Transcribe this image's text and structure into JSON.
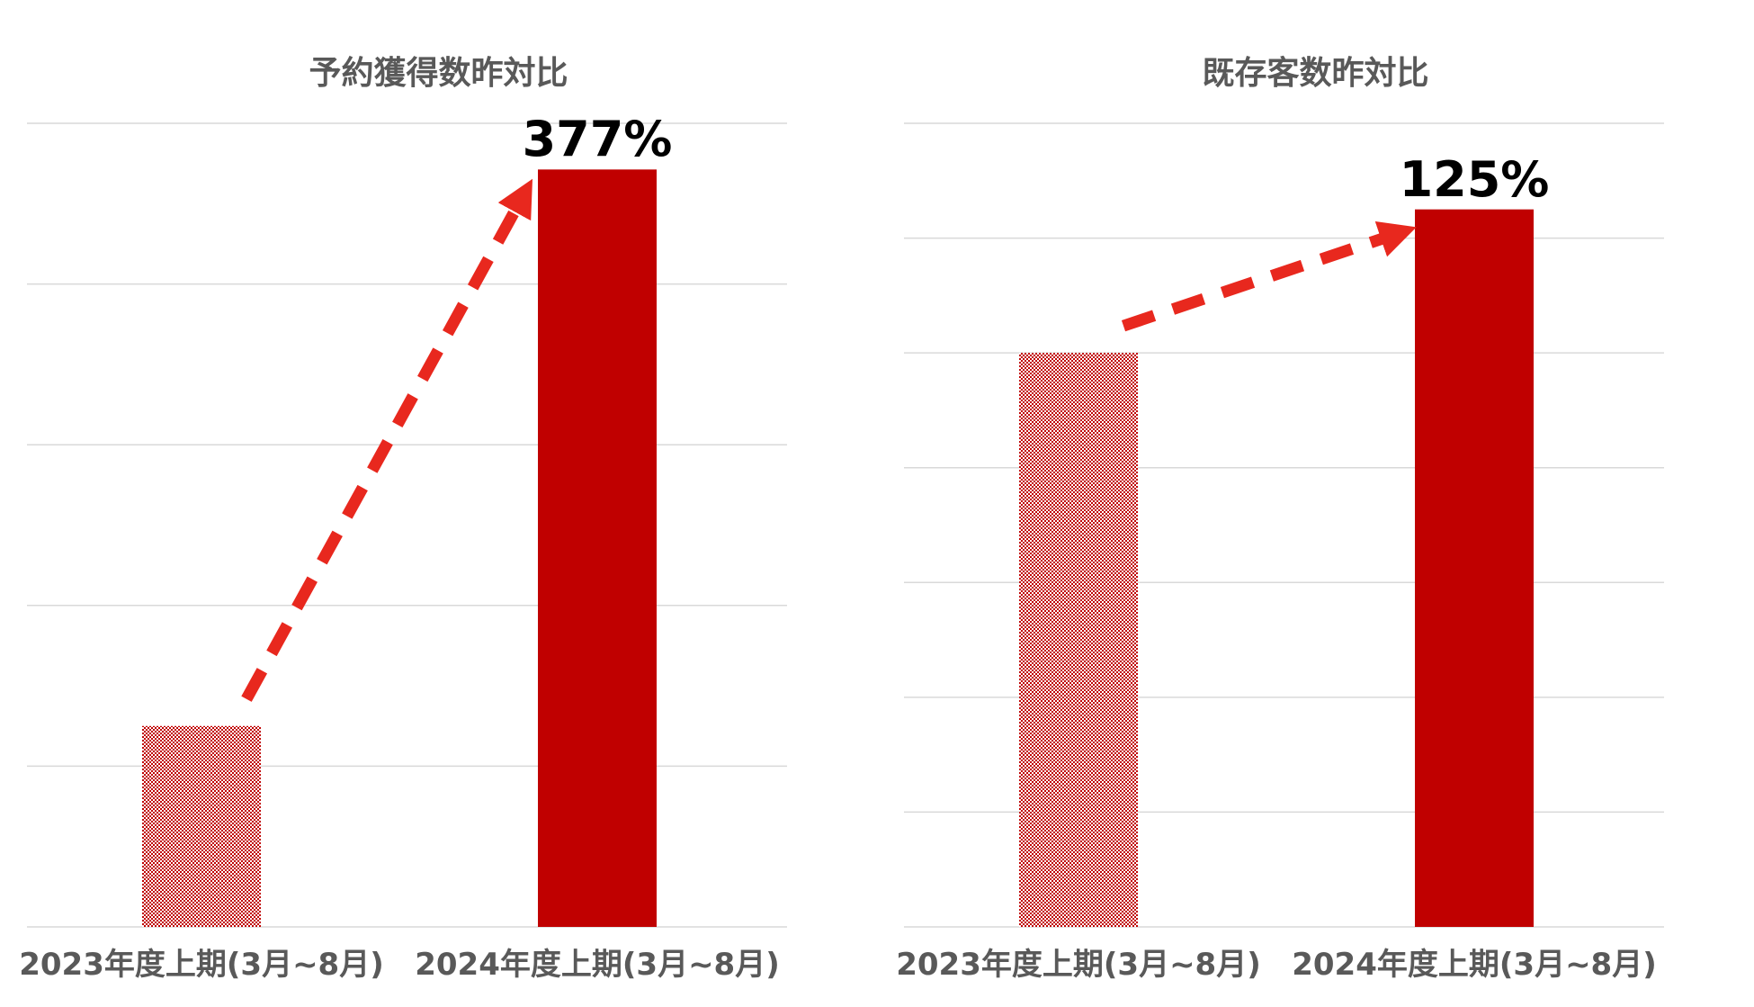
{
  "colors": {
    "bar_current": "#c00000",
    "bar_previous_pattern": "#c00000",
    "arrow": "#e8281e",
    "gridline": "#d9d9d9",
    "title_text": "#595959",
    "label_text": "#000000"
  },
  "chart_data": [
    {
      "type": "bar",
      "title": "予約獲得数昨対比",
      "categories": [
        "2023年度上期(3月~8月)",
        "2024年度上期(3月~8月)"
      ],
      "values": [
        100,
        377
      ],
      "growth_label": "377%",
      "ylim": [
        0,
        400
      ],
      "grid": true,
      "gridline_count": 5,
      "arrow": "dashed, from previous bar to current bar"
    },
    {
      "type": "bar",
      "title": "既存客数昨対比",
      "categories": [
        "2023年度上期(3月~8月)",
        "2024年度上期(3月~8月)"
      ],
      "values": [
        100,
        125
      ],
      "growth_label": "125%",
      "ylim": [
        0,
        140
      ],
      "grid": true,
      "gridline_count": 7,
      "arrow": "dashed, from previous bar to current bar"
    }
  ]
}
